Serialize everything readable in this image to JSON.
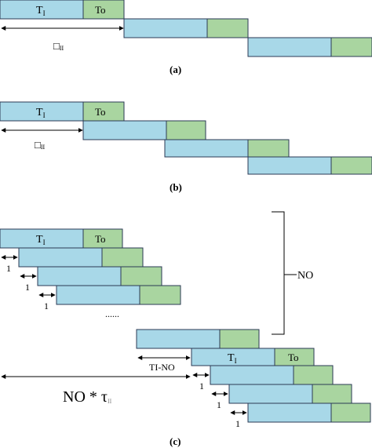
{
  "labels": {
    "ti": "T",
    "ti_sub": "I",
    "to": "To",
    "tau_glyph": "□",
    "tau_sub": "II",
    "a": "(a)",
    "b": "(b)",
    "c": "(c)",
    "one": "1",
    "ellipsis": "......",
    "no": "NO",
    "ti_no": "TI-NO",
    "no_tau": "NO * τ",
    "no_tau_sub": "II"
  }
}
